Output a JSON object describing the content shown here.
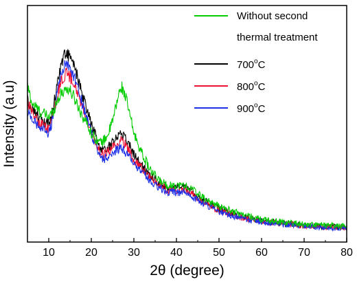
{
  "chart_data": {
    "type": "line",
    "xlabel": "2θ (degree)",
    "ylabel": "Intensity (a.u)",
    "xlim": [
      5,
      80
    ],
    "ylim": [
      0,
      100
    ],
    "x_ticks": [
      "10",
      "20",
      "30",
      "40",
      "50",
      "60",
      "70",
      "80"
    ],
    "y_ticks_shown": false,
    "grid": false,
    "legend_position": "top-right",
    "series": [
      {
        "name": "Without second thermal treatment",
        "legend_lines": [
          "Without second",
          "thermal treatment"
        ],
        "color": "#00cc00",
        "x": [
          5,
          6,
          8,
          10,
          11,
          12,
          13,
          14,
          15,
          16,
          17,
          18,
          19,
          20,
          21,
          22,
          23,
          24,
          25,
          26,
          27,
          28,
          29,
          30,
          32,
          34,
          36,
          38,
          40,
          42,
          44,
          46,
          50,
          55,
          60,
          65,
          70,
          75,
          80
        ],
        "values": [
          66,
          59,
          55,
          53,
          55,
          60,
          63,
          65,
          64,
          61,
          57,
          53,
          50,
          46,
          44,
          42,
          43,
          46,
          51,
          59,
          66,
          62,
          54,
          46,
          37,
          30,
          26,
          24,
          24,
          24,
          22,
          19,
          15,
          12,
          9.5,
          8.5,
          7.5,
          7.0,
          6.7
        ]
      },
      {
        "name": "700°C",
        "legend_main": "700",
        "legend_sup": "o",
        "legend_suffix": "C",
        "color": "#000000",
        "x": [
          5,
          6,
          8,
          10,
          11,
          12,
          13,
          14,
          15,
          16,
          17,
          18,
          19,
          20,
          21,
          22,
          23,
          24,
          25,
          26,
          27,
          28,
          29,
          30,
          32,
          34,
          36,
          38,
          40,
          42,
          44,
          46,
          50,
          55,
          60,
          65,
          70,
          75,
          80
        ],
        "values": [
          60,
          57,
          52,
          50,
          56,
          67,
          76,
          80,
          78,
          74,
          68,
          61,
          56,
          50,
          45,
          40,
          39,
          40,
          42,
          45,
          46,
          44,
          41,
          37,
          32,
          28,
          25,
          23,
          23,
          23,
          21,
          18,
          14,
          11,
          9.0,
          8.0,
          7.2,
          6.6,
          6.2
        ]
      },
      {
        "name": "800°C",
        "legend_main": "800",
        "legend_sup": "o",
        "legend_suffix": "C",
        "color": "#ee1133",
        "x": [
          5,
          6,
          8,
          10,
          11,
          12,
          13,
          14,
          15,
          16,
          17,
          18,
          19,
          20,
          21,
          22,
          23,
          24,
          25,
          26,
          27,
          28,
          29,
          30,
          32,
          34,
          36,
          38,
          40,
          42,
          44,
          46,
          50,
          55,
          60,
          65,
          70,
          75,
          80
        ],
        "values": [
          59,
          55,
          50,
          48,
          53,
          62,
          69,
          71,
          70,
          67,
          62,
          57,
          52,
          47,
          42,
          38,
          37,
          38,
          40,
          42,
          43,
          41,
          38,
          35,
          31,
          27,
          24,
          22,
          22,
          22,
          20,
          17,
          13.5,
          10.5,
          8.8,
          7.8,
          7.0,
          6.4,
          6.0
        ]
      },
      {
        "name": "900°C",
        "legend_main": "900",
        "legend_sup": "o",
        "legend_suffix": "C",
        "color": "#1a2fe6",
        "x": [
          5,
          6,
          8,
          10,
          11,
          12,
          13,
          14,
          15,
          16,
          17,
          18,
          19,
          20,
          21,
          22,
          23,
          24,
          25,
          26,
          27,
          28,
          29,
          30,
          32,
          34,
          36,
          38,
          40,
          42,
          44,
          46,
          50,
          55,
          60,
          65,
          70,
          75,
          80
        ],
        "values": [
          56,
          52,
          48,
          46,
          52,
          63,
          72,
          75,
          73,
          70,
          64,
          58,
          52,
          46,
          41,
          37,
          35,
          36,
          38,
          39,
          40,
          38,
          36,
          33,
          29,
          26,
          23,
          21,
          21,
          21,
          19,
          16.5,
          13,
          10,
          8.5,
          7.5,
          6.8,
          6.2,
          5.8
        ]
      }
    ]
  }
}
